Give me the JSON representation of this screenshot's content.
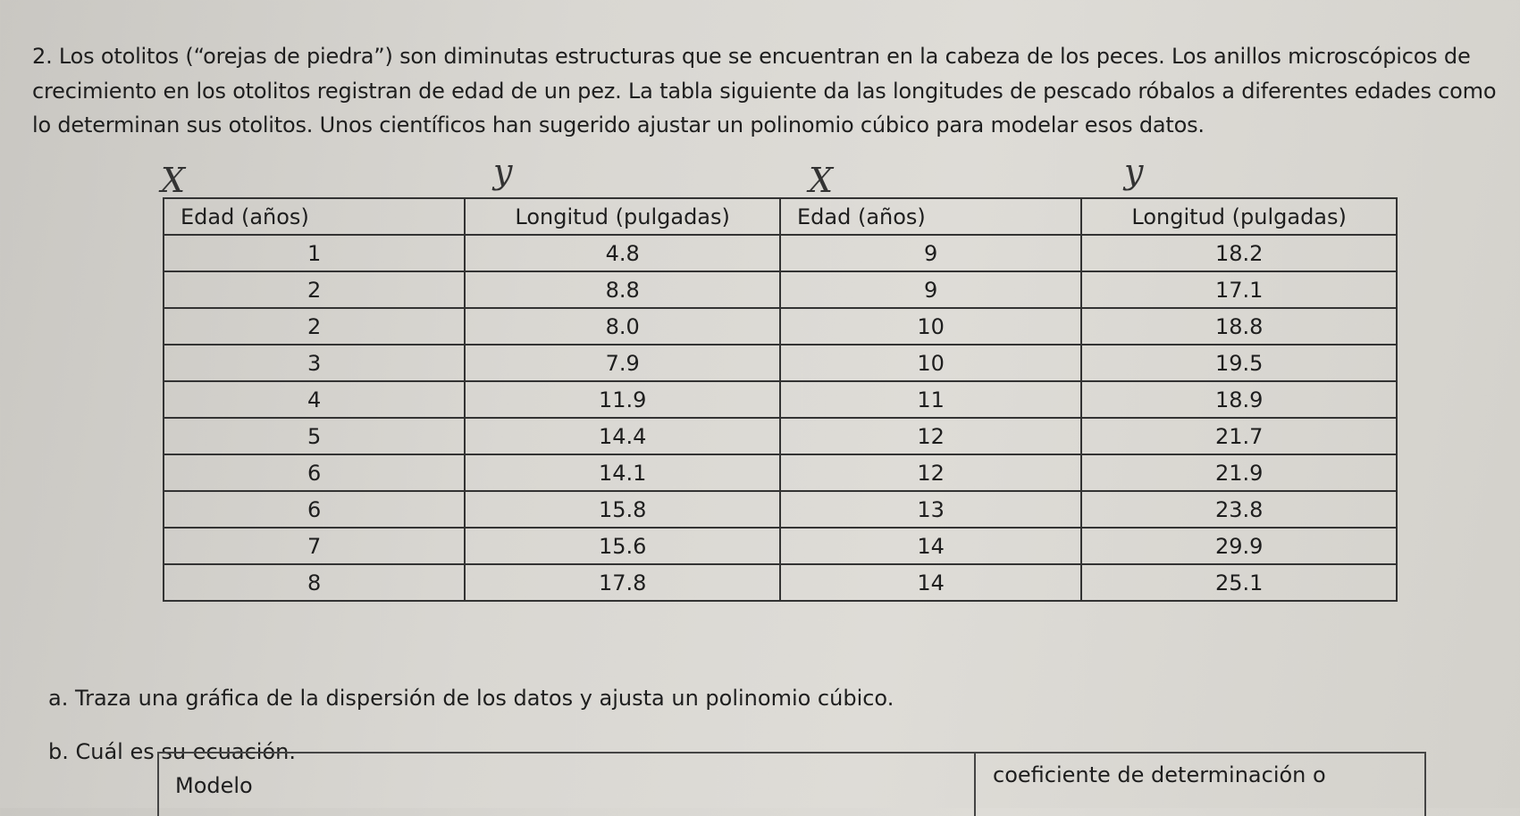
{
  "problem": {
    "paragraph": "2. Los otolitos (“orejas de piedra”) son diminutas estructuras que se encuentran en la cabeza de los peces. Los anillos microscópicos de crecimiento en los otolitos registran de edad de un pez. La tabla siguiente da las longitudes de pescado róbalos a diferentes edades como lo determinan sus otolitos. Unos científicos han sugerido ajustar un polinomio cúbico para modelar esos datos."
  },
  "annotations": [
    "X",
    "y",
    "X",
    "y"
  ],
  "table": {
    "headers": [
      "Edad (años)",
      "Longitud (pulgadas)",
      "Edad (años)",
      "Longitud (pulgadas)"
    ],
    "rows": [
      [
        "1",
        "4.8",
        "9",
        "18.2"
      ],
      [
        "2",
        "8.8",
        "9",
        "17.1"
      ],
      [
        "2",
        "8.0",
        "10",
        "18.8"
      ],
      [
        "3",
        "7.9",
        "10",
        "19.5"
      ],
      [
        "4",
        "11.9",
        "11",
        "18.9"
      ],
      [
        "5",
        "14.4",
        "12",
        "21.7"
      ],
      [
        "6",
        "14.1",
        "12",
        "21.9"
      ],
      [
        "6",
        "15.8",
        "13",
        "23.8"
      ],
      [
        "7",
        "15.6",
        "14",
        "29.9"
      ],
      [
        "8",
        "17.8",
        "14",
        "25.1"
      ]
    ]
  },
  "questions": {
    "a": "a.   Traza una gráfica de la dispersión de los datos y ajusta un polinomio cúbico.",
    "b": "b.   Cuál es su ecuación."
  },
  "model_table": {
    "col1": "Modelo",
    "col2": "coeficiente de determinación o"
  }
}
